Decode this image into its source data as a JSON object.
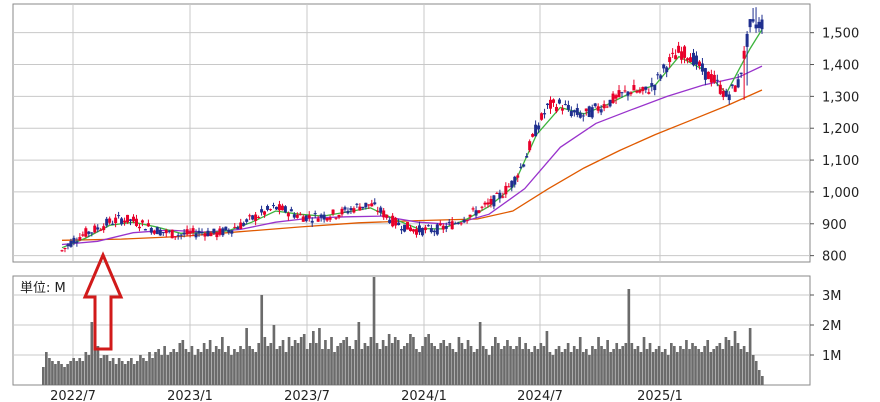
{
  "chart_data": [
    {
      "type": "candlestick",
      "panel": "price",
      "ylim": [
        780,
        1590
      ],
      "yticks": [
        800,
        900,
        1000,
        1100,
        1200,
        1300,
        1400,
        1500
      ],
      "ytick_labels": [
        "800",
        "900",
        "1,000",
        "1,100",
        "1,200",
        "1,300",
        "1,400",
        "1,500"
      ],
      "xtick_labels": [
        "2022/7",
        "2023/1",
        "2023/7",
        "2024/1",
        "2024/7",
        "2025/1"
      ],
      "grid": true,
      "colors": {
        "up": "#e8002a",
        "down": "#1f2f8f",
        "ma_short": "#3cb43c",
        "ma_mid": "#9933cc",
        "ma_long": "#e05a00"
      },
      "price_path": [
        [
          0,
          815
        ],
        [
          2,
          850
        ],
        [
          4,
          870
        ],
        [
          6,
          885
        ],
        [
          8,
          905
        ],
        [
          10,
          915
        ],
        [
          12,
          910
        ],
        [
          14,
          895
        ],
        [
          16,
          880
        ],
        [
          18,
          870
        ],
        [
          20,
          865
        ],
        [
          22,
          870
        ],
        [
          24,
          875
        ],
        [
          26,
          868
        ],
        [
          28,
          880
        ],
        [
          30,
          895
        ],
        [
          32,
          915
        ],
        [
          34,
          935
        ],
        [
          36,
          950
        ],
        [
          38,
          940
        ],
        [
          40,
          925
        ],
        [
          42,
          920
        ],
        [
          44,
          925
        ],
        [
          46,
          930
        ],
        [
          48,
          940
        ],
        [
          50,
          955
        ],
        [
          52,
          960
        ],
        [
          54,
          935
        ],
        [
          56,
          905
        ],
        [
          58,
          890
        ],
        [
          60,
          880
        ],
        [
          62,
          880
        ],
        [
          64,
          885
        ],
        [
          66,
          900
        ],
        [
          68,
          920
        ],
        [
          70,
          940
        ],
        [
          72,
          960
        ],
        [
          74,
          990
        ],
        [
          76,
          1030
        ],
        [
          78,
          1100
        ],
        [
          80,
          1200
        ],
        [
          82,
          1270
        ],
        [
          84,
          1275
        ],
        [
          86,
          1250
        ],
        [
          88,
          1240
        ],
        [
          90,
          1260
        ],
        [
          92,
          1280
        ],
        [
          94,
          1300
        ],
        [
          96,
          1320
        ],
        [
          98,
          1310
        ],
        [
          100,
          1340
        ],
        [
          102,
          1400
        ],
        [
          104,
          1440
        ],
        [
          106,
          1430
        ],
        [
          108,
          1380
        ],
        [
          110,
          1350
        ],
        [
          112,
          1300
        ],
        [
          114,
          1340
        ],
        [
          116,
          1520
        ],
        [
          118,
          1530
        ]
      ],
      "ma_short": [
        [
          0,
          825
        ],
        [
          4,
          855
        ],
        [
          8,
          895
        ],
        [
          12,
          905
        ],
        [
          16,
          890
        ],
        [
          20,
          870
        ],
        [
          24,
          872
        ],
        [
          28,
          878
        ],
        [
          32,
          905
        ],
        [
          36,
          940
        ],
        [
          40,
          930
        ],
        [
          44,
          924
        ],
        [
          48,
          937
        ],
        [
          52,
          950
        ],
        [
          56,
          915
        ],
        [
          60,
          885
        ],
        [
          64,
          884
        ],
        [
          68,
          912
        ],
        [
          72,
          955
        ],
        [
          76,
          1015
        ],
        [
          80,
          1180
        ],
        [
          84,
          1265
        ],
        [
          88,
          1245
        ],
        [
          92,
          1275
        ],
        [
          96,
          1312
        ],
        [
          100,
          1335
        ],
        [
          104,
          1425
        ],
        [
          108,
          1385
        ],
        [
          112,
          1310
        ],
        [
          116,
          1450
        ],
        [
          118,
          1510
        ]
      ],
      "ma_mid": [
        [
          0,
          835
        ],
        [
          6,
          845
        ],
        [
          12,
          872
        ],
        [
          18,
          880
        ],
        [
          24,
          874
        ],
        [
          30,
          882
        ],
        [
          36,
          905
        ],
        [
          42,
          918
        ],
        [
          48,
          922
        ],
        [
          54,
          924
        ],
        [
          60,
          905
        ],
        [
          66,
          898
        ],
        [
          72,
          930
        ],
        [
          78,
          1010
        ],
        [
          84,
          1140
        ],
        [
          90,
          1215
        ],
        [
          96,
          1258
        ],
        [
          102,
          1300
        ],
        [
          108,
          1335
        ],
        [
          114,
          1360
        ],
        [
          118,
          1395
        ]
      ],
      "ma_long": [
        [
          0,
          848
        ],
        [
          10,
          852
        ],
        [
          20,
          860
        ],
        [
          30,
          875
        ],
        [
          40,
          890
        ],
        [
          50,
          903
        ],
        [
          60,
          910
        ],
        [
          70,
          915
        ],
        [
          76,
          940
        ],
        [
          82,
          1010
        ],
        [
          88,
          1075
        ],
        [
          94,
          1130
        ],
        [
          100,
          1180
        ],
        [
          106,
          1225
        ],
        [
          112,
          1270
        ],
        [
          118,
          1320
        ]
      ]
    },
    {
      "type": "bar",
      "panel": "volume",
      "unit_label": "単位: M",
      "ylim": [
        0,
        3.5
      ],
      "yticks": [
        1,
        2,
        3
      ],
      "ytick_labels": [
        "1M",
        "2M",
        "3M"
      ],
      "xtick_labels": [
        "2022/7",
        "2023/1",
        "2023/7",
        "2024/1",
        "2024/7",
        "2025/1"
      ],
      "values": [
        0.6,
        1.1,
        0.9,
        0.8,
        0.7,
        0.8,
        0.7,
        0.6,
        0.7,
        0.8,
        0.9,
        0.8,
        0.9,
        0.8,
        1.1,
        1.0,
        2.1,
        1.2,
        1.3,
        0.9,
        1.0,
        1.0,
        0.8,
        0.9,
        0.7,
        0.9,
        0.8,
        0.7,
        0.8,
        0.9,
        0.7,
        0.8,
        1.0,
        0.9,
        0.8,
        1.1,
        0.9,
        1.1,
        1.2,
        1.0,
        1.3,
        1.0,
        1.1,
        1.2,
        1.1,
        1.4,
        1.5,
        1.2,
        1.1,
        1.3,
        1.0,
        1.2,
        1.1,
        1.4,
        1.2,
        1.5,
        1.1,
        1.3,
        1.2,
        1.6,
        1.1,
        1.3,
        1.0,
        1.2,
        1.1,
        1.3,
        1.2,
        1.9,
        1.3,
        1.2,
        1.1,
        1.4,
        3.0,
        1.6,
        1.3,
        1.4,
        2.0,
        1.2,
        1.3,
        1.5,
        1.1,
        1.6,
        1.3,
        1.5,
        1.4,
        1.6,
        1.7,
        1.2,
        1.4,
        1.8,
        1.4,
        1.9,
        1.2,
        1.5,
        1.2,
        1.6,
        1.1,
        1.3,
        1.4,
        1.5,
        1.6,
        1.3,
        1.2,
        1.5,
        2.1,
        1.2,
        1.4,
        1.3,
        1.6,
        3.6,
        1.4,
        1.2,
        1.5,
        1.3,
        1.7,
        1.4,
        1.6,
        1.5,
        1.2,
        1.3,
        1.4,
        1.7,
        1.6,
        1.2,
        1.1,
        1.3,
        1.6,
        1.7,
        1.4,
        1.3,
        1.2,
        1.4,
        1.5,
        1.3,
        1.4,
        1.2,
        1.1,
        1.6,
        1.4,
        1.2,
        1.5,
        1.3,
        1.1,
        1.2,
        2.1,
        1.3,
        1.2,
        1.0,
        1.3,
        1.6,
        1.4,
        1.2,
        1.3,
        1.5,
        1.3,
        1.2,
        1.3,
        1.6,
        1.2,
        1.4,
        1.2,
        1.1,
        1.3,
        1.2,
        1.4,
        1.3,
        1.8,
        1.1,
        1.0,
        1.2,
        1.3,
        1.1,
        1.2,
        1.4,
        1.1,
        1.3,
        1.2,
        1.6,
        1.1,
        1.2,
        1.0,
        1.3,
        1.2,
        1.6,
        1.3,
        1.2,
        1.5,
        1.1,
        1.2,
        1.4,
        1.2,
        1.3,
        1.4,
        3.2,
        1.4,
        1.2,
        1.3,
        1.1,
        1.6,
        1.2,
        1.4,
        1.1,
        1.2,
        1.3,
        1.1,
        1.2,
        1.0,
        1.4,
        1.3,
        1.1,
        1.3,
        1.2,
        1.5,
        1.2,
        1.4,
        1.3,
        1.2,
        1.1,
        1.3,
        1.5,
        1.1,
        1.2,
        1.3,
        1.4,
        1.2,
        1.6,
        1.5,
        1.3,
        1.8,
        1.4,
        1.2,
        1.3,
        1.1,
        1.9,
        1.0,
        0.8,
        0.5,
        0.3
      ]
    }
  ],
  "annotation": {
    "type": "arrow",
    "color": "#d11a1a",
    "points_to": "2022/7 low",
    "label": ""
  }
}
